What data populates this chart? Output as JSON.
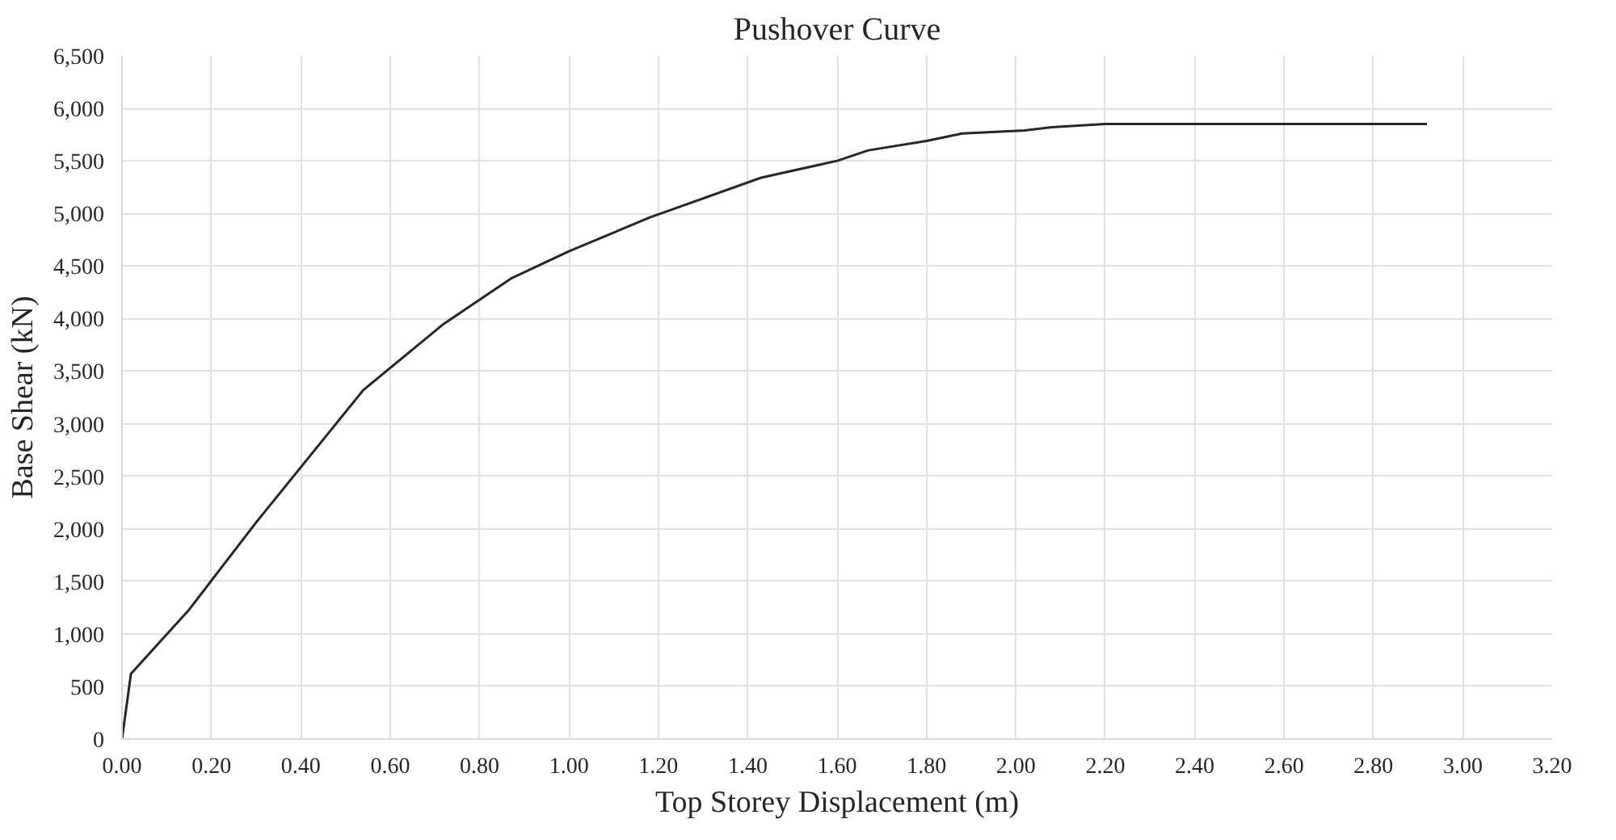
{
  "chart_data": {
    "type": "line",
    "title": "Pushover Curve",
    "xlabel": "Top Storey Displacement (m)",
    "ylabel": "Base Shear (kN)",
    "x": [
      0,
      0.02,
      0.15,
      0.3,
      0.54,
      0.72,
      0.87,
      1.0,
      1.18,
      1.43,
      1.6,
      1.67,
      1.8,
      1.88,
      2.02,
      2.08,
      2.2,
      2.92
    ],
    "series": [
      {
        "color": "#262626",
        "values": [
          0,
          620,
          1230,
          2060,
          3320,
          3950,
          4380,
          4640,
          4960,
          5340,
          5500,
          5600,
          5690,
          5760,
          5790,
          5820,
          5850,
          5850
        ]
      }
    ],
    "xlim": [
      0,
      3.2
    ],
    "xticks": [
      {
        "value": 0,
        "label": "0.00"
      },
      {
        "value": 0.2,
        "label": "0.20"
      },
      {
        "value": 0.4,
        "label": "0.40"
      },
      {
        "value": 0.6,
        "label": "0.60"
      },
      {
        "value": 0.8,
        "label": "0.80"
      },
      {
        "value": 1.0,
        "label": "1.00"
      },
      {
        "value": 1.2,
        "label": "1.20"
      },
      {
        "value": 1.4,
        "label": "1.40"
      },
      {
        "value": 1.6,
        "label": "1.60"
      },
      {
        "value": 1.8,
        "label": "1.80"
      },
      {
        "value": 2.0,
        "label": "2.00"
      },
      {
        "value": 2.2,
        "label": "2.20"
      },
      {
        "value": 2.4,
        "label": "2.40"
      },
      {
        "value": 2.6,
        "label": "2.60"
      },
      {
        "value": 2.8,
        "label": "2.80"
      },
      {
        "value": 3.0,
        "label": "3.00"
      },
      {
        "value": 3.2,
        "label": "3.20"
      }
    ],
    "ylim": [
      0,
      6500
    ],
    "yticks": [
      0,
      {
        "value": 500,
        "label": "500"
      },
      {
        "value": 1000,
        "label": "1,000"
      },
      {
        "value": 1500,
        "label": "1,500"
      },
      {
        "value": 2000,
        "label": "2,000"
      },
      {
        "value": 2500,
        "label": "2,500"
      },
      {
        "value": 3000,
        "label": "3,000"
      },
      {
        "value": 3500,
        "label": "3,500"
      },
      {
        "value": 4000,
        "label": "4,000"
      },
      {
        "value": 4500,
        "label": "4,500"
      },
      {
        "value": 5000,
        "label": "5,000"
      },
      {
        "value": 5500,
        "label": "5,500"
      },
      {
        "value": 6000,
        "label": "6,000"
      },
      {
        "value": 6500,
        "label": "6,500"
      }
    ],
    "grid": true,
    "line_style": "solid"
  }
}
